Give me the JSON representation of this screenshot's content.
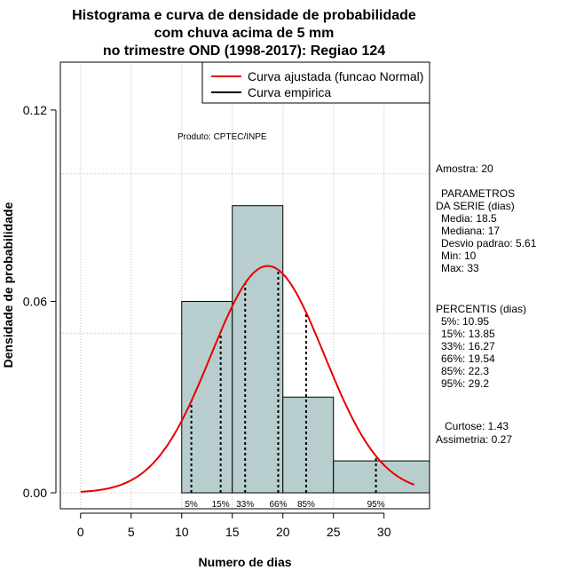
{
  "chart_data": {
    "type": "bar",
    "title_lines": [
      "Histograma e curva de densidade de probabilidade",
      "com chuva acima de 5 mm",
      "no trimestre OND (1998-2017): Regiao 124"
    ],
    "xlabel": "Numero de dias",
    "ylabel": "Densidade de probabilidade",
    "xlim": [
      -2,
      34.5
    ],
    "ylim": [
      -0.005,
      0.135
    ],
    "x_ticks": [
      0,
      5,
      10,
      15,
      20,
      25,
      30
    ],
    "y_ticks": [
      0.0,
      0.06,
      0.12
    ],
    "y_tick_labels": [
      "0.00",
      "0.06",
      "0.12"
    ],
    "grid": true,
    "bins": [
      {
        "from": 10,
        "to": 15,
        "density": 0.06
      },
      {
        "from": 15,
        "to": 20,
        "density": 0.09
      },
      {
        "from": 20,
        "to": 25,
        "density": 0.03
      },
      {
        "from": 25,
        "to": 35,
        "density": 0.01
      }
    ],
    "normal_fit": {
      "mean": 18.5,
      "sd": 5.61,
      "x_from": 0,
      "x_to": 33
    },
    "percentiles": [
      {
        "label": "5%",
        "x": 10.95
      },
      {
        "label": "15%",
        "x": 13.85
      },
      {
        "label": "33%",
        "x": 16.27
      },
      {
        "label": "66%",
        "x": 19.54
      },
      {
        "label": "85%",
        "x": 22.3
      },
      {
        "label": "95%",
        "x": 29.2
      }
    ],
    "legend": {
      "position": "top-right",
      "entries": [
        {
          "label": "Curva ajustada (funcao Normal)",
          "color": "#e60000"
        },
        {
          "label": "Curva empirica",
          "color": "#000000"
        }
      ]
    },
    "annotation": "Produto: CPTEC/INPE",
    "bar_fill": "#b8cece",
    "curve_color": "#e60000"
  },
  "side_panel": {
    "amostra": "Amostra: 20",
    "params_header_1": "PARAMETROS",
    "params_header_2": "DA SERIE (dias)",
    "params": [
      "Media: 18.5",
      "Mediana: 17",
      "Desvio padrao: 5.61",
      "Min: 10",
      "Max: 33"
    ],
    "percentis_header": "PERCENTIS (dias)",
    "percentis": [
      "5%: 10.95",
      "15%: 13.85",
      "33%: 16.27",
      "66%: 19.54",
      "85%: 22.3",
      "95%: 29.2"
    ],
    "curtose": "Curtose: 1.43",
    "assimetria": "Assimetria: 0.27"
  }
}
